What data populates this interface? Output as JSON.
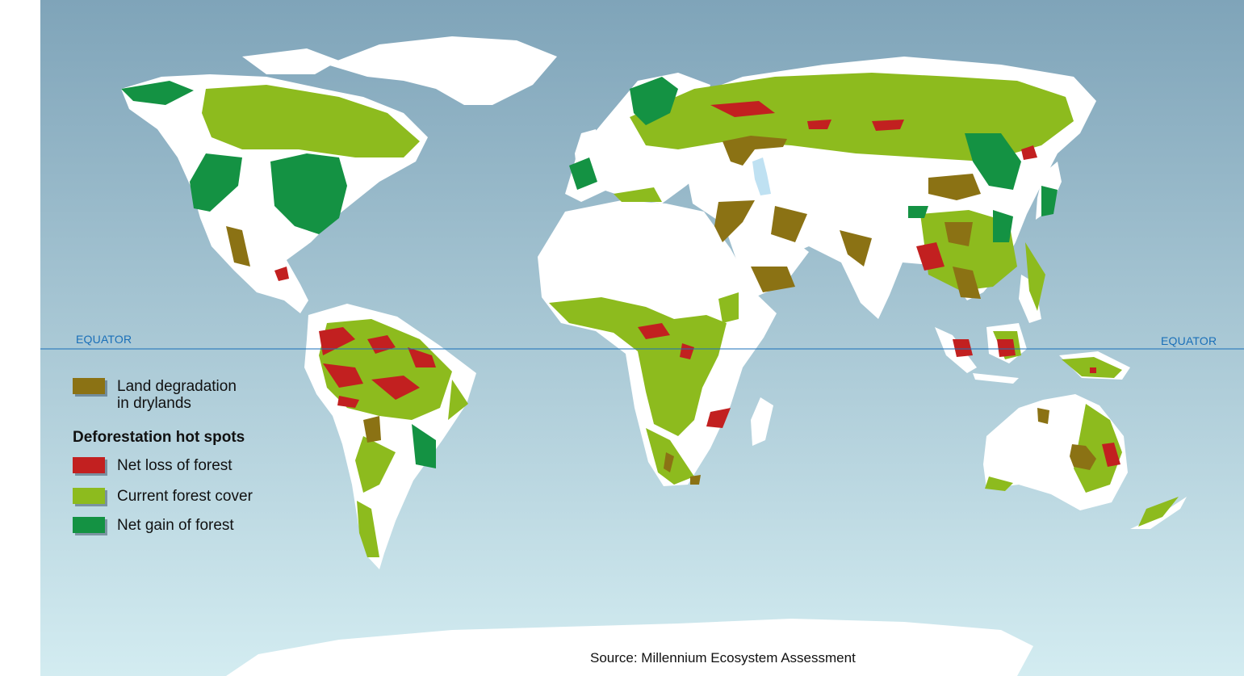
{
  "map": {
    "equator_label_left": "EQUATOR",
    "equator_label_right": "EQUATOR",
    "source": "Source: Millennium Ecosystem Assessment",
    "colors": {
      "ocean_top": "#7fa4b9",
      "ocean_bottom": "#d3ecf1",
      "land": "#ffffff",
      "equator_line": "#1a6fb8",
      "land_degradation": "#8b7214",
      "net_loss_of_forest": "#c22020",
      "current_forest_cover": "#8dbb1e",
      "net_gain_of_forest": "#149243",
      "inland_water": "#bfe1f2"
    }
  },
  "legend": {
    "degradation_line1": "Land degradation",
    "degradation_line2": "in drylands",
    "heading": "Deforestation hot spots",
    "net_loss_label": "Net loss of forest",
    "current_cover_label": "Current forest cover",
    "net_gain_label": "Net gain of forest"
  }
}
